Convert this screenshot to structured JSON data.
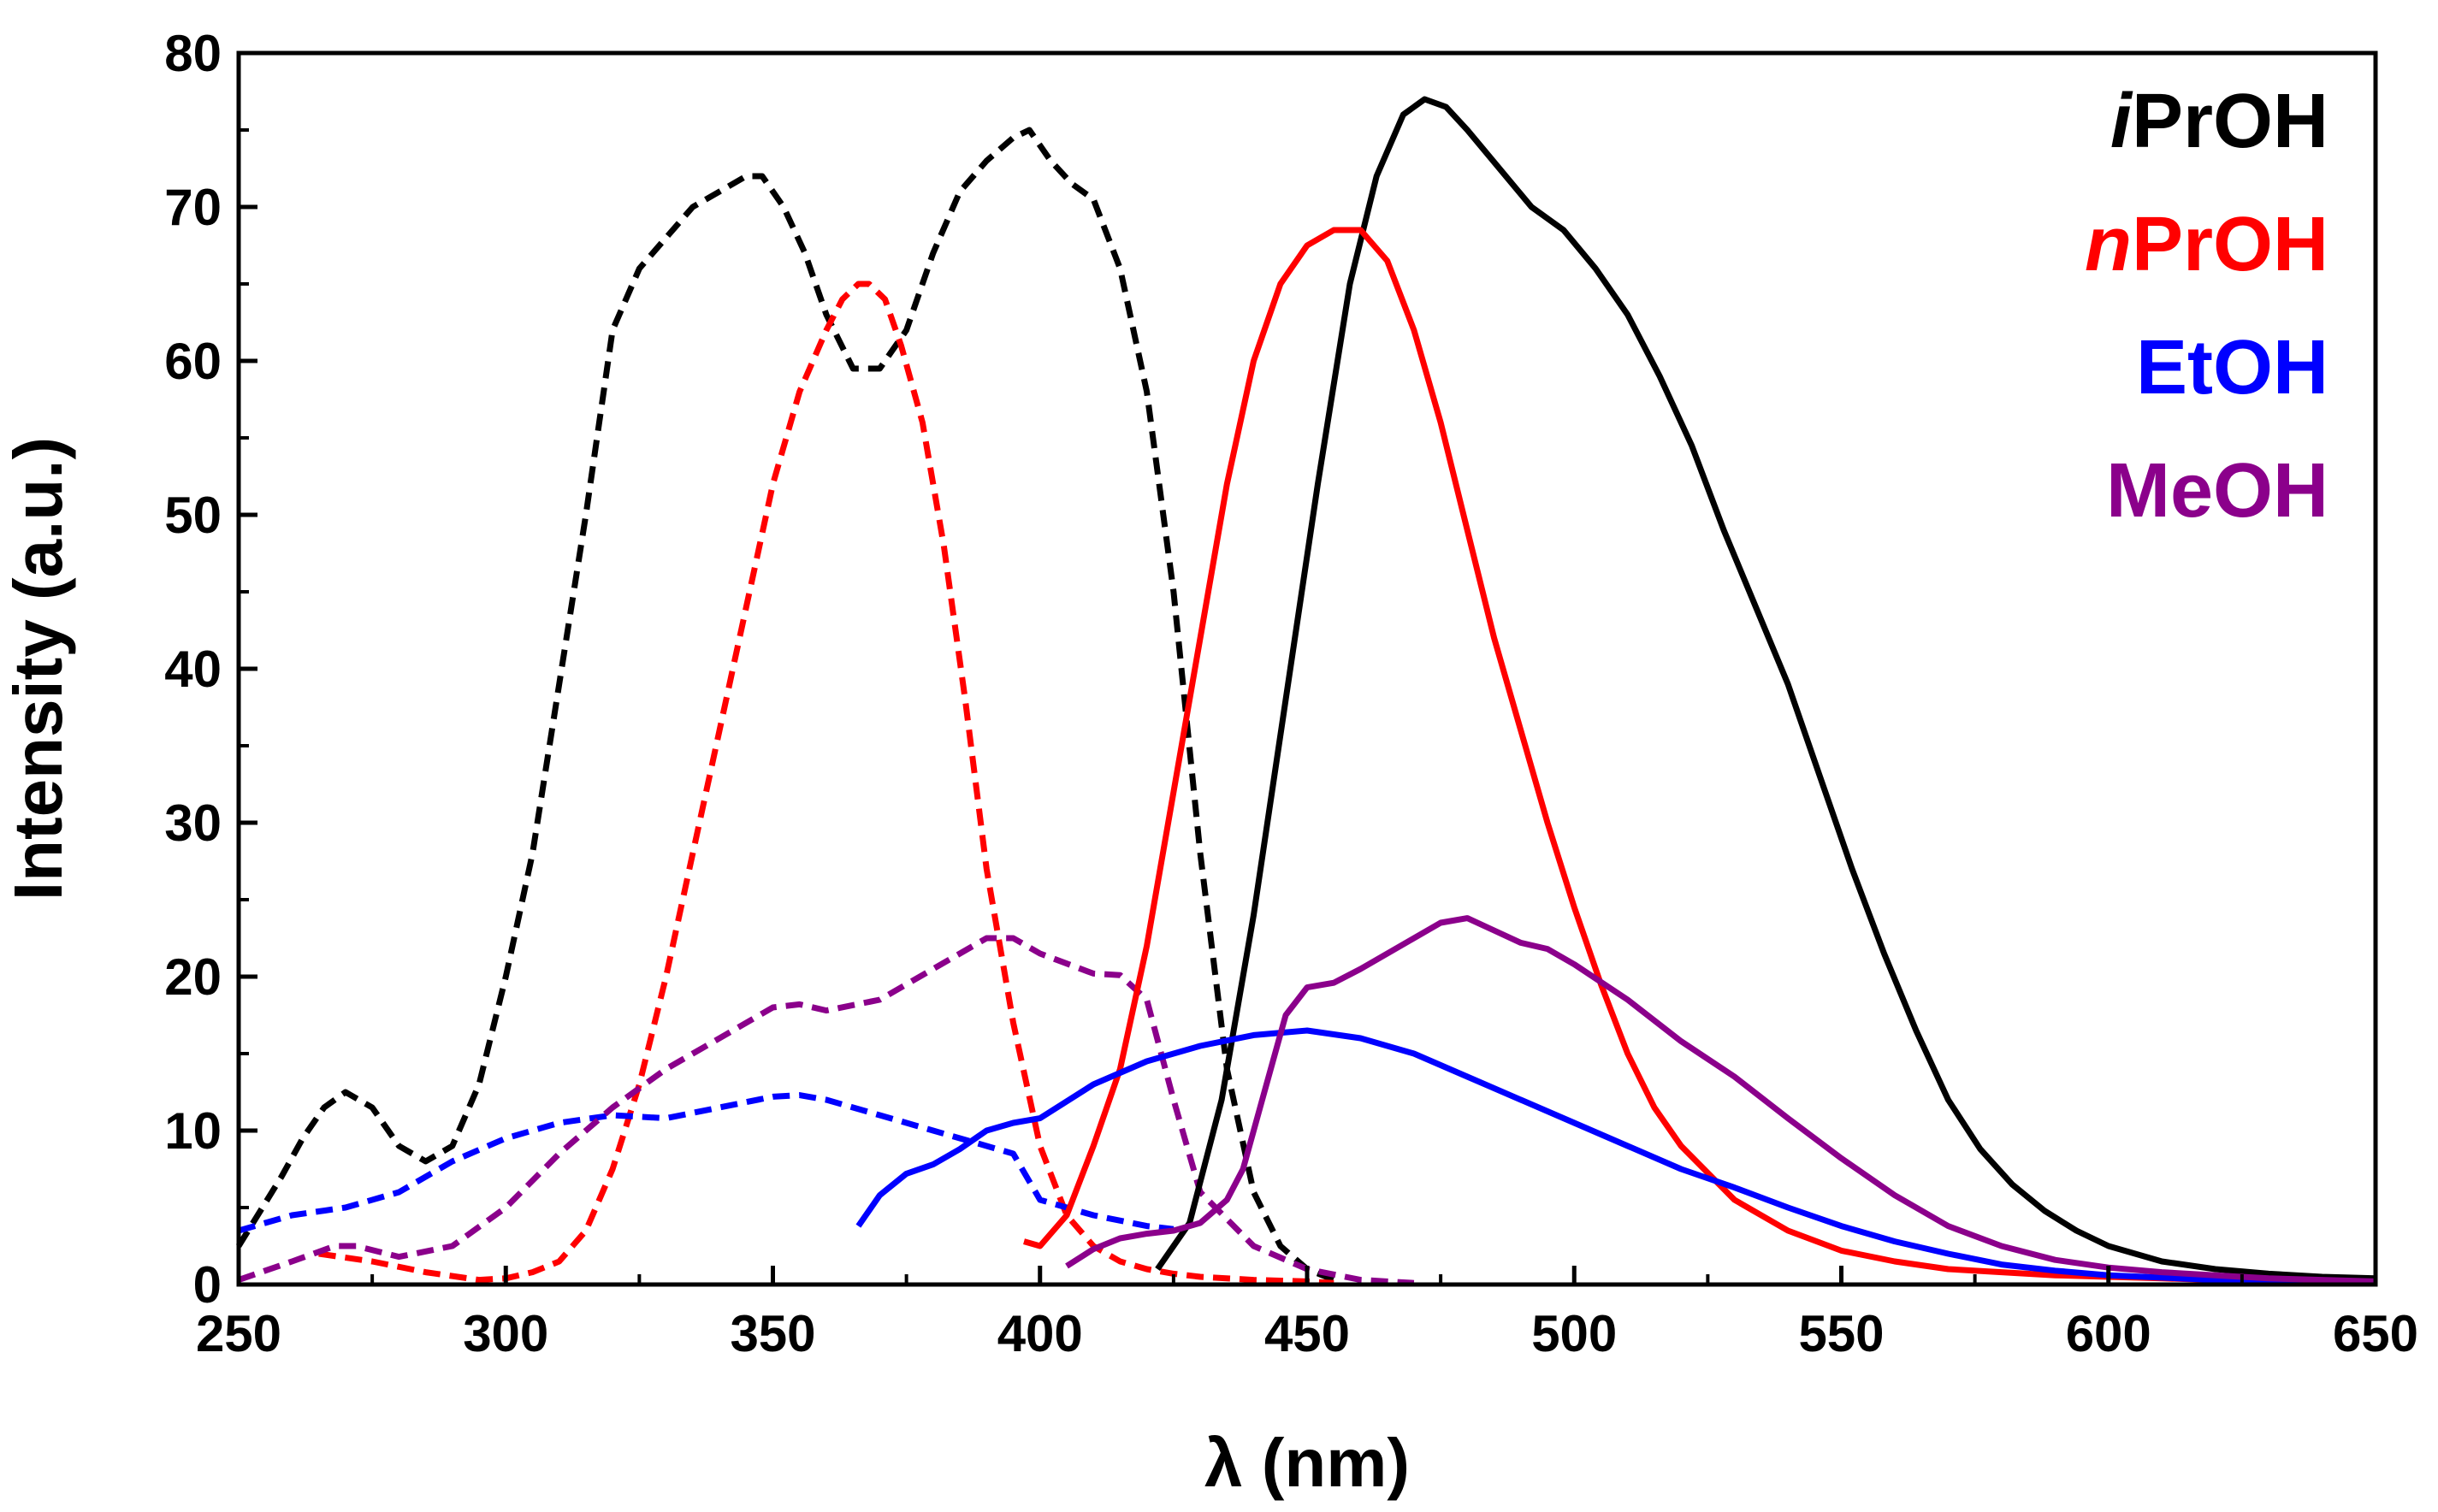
{
  "chart_data": {
    "type": "line",
    "title": "",
    "xlabel": "λ (nm)",
    "ylabel": "Intensity (a.u.)",
    "xlim": [
      250,
      650
    ],
    "ylim": [
      0,
      80
    ],
    "xticks": [
      250,
      300,
      350,
      400,
      450,
      500,
      550,
      600,
      650
    ],
    "yticks": [
      0,
      10,
      20,
      30,
      40,
      50,
      60,
      70,
      80
    ],
    "legend": [
      {
        "prefix": "i",
        "label": "PrOH",
        "color": "#000000"
      },
      {
        "prefix": "n",
        "label": "PrOH",
        "color": "#ff0000"
      },
      {
        "prefix": "",
        "label": "EtOH",
        "color": "#0000ff"
      },
      {
        "prefix": "",
        "label": "MeOH",
        "color": "#8b008b"
      }
    ],
    "series": [
      {
        "name": "iPrOH excitation",
        "color": "#000000",
        "style": "dashed",
        "x": [
          250,
          258,
          262,
          266,
          270,
          275,
          280,
          285,
          290,
          295,
          300,
          305,
          310,
          315,
          320,
          325,
          330,
          335,
          340,
          345,
          348,
          352,
          356,
          360,
          365,
          370,
          375,
          380,
          385,
          390,
          395,
          398,
          402,
          406,
          410,
          415,
          420,
          425,
          430,
          435,
          440,
          445,
          450,
          455
        ],
        "y": [
          2.5,
          7,
          9.5,
          11.5,
          12.5,
          11.5,
          9,
          8,
          9,
          13,
          20,
          28,
          39,
          50,
          62,
          66,
          68,
          70,
          71,
          72,
          72,
          70,
          67,
          63,
          59.5,
          59.5,
          62,
          67,
          71,
          73,
          74.5,
          75,
          73,
          71.5,
          70.5,
          66,
          58,
          45,
          28,
          14,
          6,
          2.5,
          1,
          0.3
        ]
      },
      {
        "name": "nPrOH excitation",
        "color": "#ff0000",
        "style": "dashed",
        "x": [
          265,
          275,
          285,
          295,
          300,
          305,
          310,
          315,
          320,
          325,
          330,
          335,
          340,
          345,
          350,
          355,
          360,
          363,
          366,
          368,
          371,
          374,
          378,
          382,
          386,
          390,
          395,
          400,
          405,
          410,
          415,
          420,
          425,
          430,
          440,
          450,
          455
        ],
        "y": [
          2,
          1.5,
          0.8,
          0.3,
          0.4,
          0.8,
          1.5,
          3.5,
          7.5,
          13,
          20,
          28,
          36,
          44,
          52,
          58,
          62,
          64,
          65,
          65,
          64,
          61,
          56,
          48,
          38,
          27,
          17,
          9,
          4.5,
          2.5,
          1.5,
          1,
          0.7,
          0.5,
          0.3,
          0.2,
          0.1
        ]
      },
      {
        "name": "EtOH excitation",
        "color": "#0000ff",
        "style": "dashed",
        "x": [
          250,
          260,
          270,
          280,
          290,
          300,
          310,
          320,
          330,
          340,
          350,
          355,
          360,
          370,
          380,
          390,
          395,
          400,
          410,
          420,
          425
        ],
        "y": [
          3.5,
          4.5,
          5,
          6,
          8,
          9.5,
          10.5,
          11,
          10.8,
          11.5,
          12.2,
          12.3,
          12,
          11,
          10,
          9,
          8.5,
          5.5,
          4.5,
          3.8,
          3.6
        ]
      },
      {
        "name": "MeOH excitation",
        "color": "#8b008b",
        "style": "dashed",
        "x": [
          250,
          260,
          268,
          272,
          280,
          290,
          300,
          310,
          320,
          330,
          340,
          350,
          355,
          360,
          370,
          380,
          390,
          395,
          400,
          410,
          415,
          420,
          425,
          430,
          440,
          450,
          460,
          470
        ],
        "y": [
          0.3,
          1.5,
          2.5,
          2.5,
          1.8,
          2.5,
          5,
          8.5,
          11.5,
          14,
          16,
          18,
          18.2,
          17.8,
          18.5,
          20.5,
          22.5,
          22.5,
          21.5,
          20.2,
          20.1,
          18.5,
          12,
          6,
          2.5,
          1,
          0.3,
          0.1
        ]
      },
      {
        "name": "iPrOH emission",
        "color": "#000000",
        "style": "solid",
        "x": [
          422,
          428,
          434,
          440,
          446,
          452,
          458,
          463,
          468,
          472,
          476,
          480,
          486,
          492,
          498,
          504,
          510,
          516,
          522,
          528,
          534,
          540,
          546,
          552,
          558,
          564,
          570,
          576,
          582,
          588,
          594,
          600,
          610,
          620,
          630,
          640,
          650
        ],
        "y": [
          1,
          4,
          12,
          24,
          38,
          52,
          65,
          72,
          76,
          77,
          76.5,
          75,
          72.5,
          70,
          68.5,
          66,
          63,
          59,
          54.5,
          49,
          44,
          39,
          33,
          27,
          21.5,
          16.5,
          12,
          8.8,
          6.5,
          4.8,
          3.5,
          2.5,
          1.5,
          1,
          0.7,
          0.5,
          0.4
        ]
      },
      {
        "name": "nPrOH emission",
        "color": "#ff0000",
        "style": "solid",
        "x": [
          397,
          400,
          405,
          410,
          415,
          420,
          425,
          430,
          435,
          440,
          445,
          450,
          455,
          460,
          465,
          470,
          475,
          480,
          485,
          490,
          495,
          500,
          505,
          510,
          515,
          520,
          530,
          540,
          550,
          560,
          570,
          580,
          590,
          600,
          610,
          620,
          630,
          640,
          650
        ],
        "y": [
          2.8,
          2.5,
          4.5,
          9,
          14,
          22,
          32,
          42,
          52,
          60,
          65,
          67.5,
          68.5,
          68.5,
          66.5,
          62,
          56,
          49,
          42,
          36,
          30,
          24.5,
          19.5,
          15,
          11.5,
          9,
          5.5,
          3.5,
          2.2,
          1.5,
          1,
          0.8,
          0.6,
          0.5,
          0.4,
          0.3,
          0.2,
          0.2,
          0.1
        ]
      },
      {
        "name": "EtOH emission",
        "color": "#0000ff",
        "style": "solid",
        "x": [
          366,
          370,
          375,
          380,
          385,
          390,
          395,
          400,
          410,
          420,
          430,
          440,
          450,
          460,
          470,
          480,
          490,
          500,
          510,
          520,
          530,
          540,
          550,
          560,
          570,
          580,
          590,
          600,
          620,
          640,
          650
        ],
        "y": [
          3.8,
          5.8,
          7.2,
          7.8,
          8.8,
          10,
          10.5,
          10.8,
          13,
          14.5,
          15.5,
          16.2,
          16.5,
          16,
          15,
          13.5,
          12,
          10.5,
          9,
          7.5,
          6.3,
          5,
          3.8,
          2.8,
          2,
          1.3,
          0.9,
          0.6,
          0.3,
          0.2,
          0.1
        ]
      },
      {
        "name": "MeOH emission",
        "color": "#8b008b",
        "style": "solid",
        "x": [
          405,
          410,
          415,
          420,
          425,
          430,
          435,
          438,
          442,
          446,
          450,
          455,
          460,
          465,
          470,
          475,
          480,
          485,
          490,
          495,
          500,
          510,
          520,
          530,
          540,
          550,
          560,
          570,
          580,
          590,
          600,
          610,
          620,
          630,
          640,
          650
        ],
        "y": [
          1.2,
          2.3,
          3,
          3.3,
          3.5,
          4,
          5.5,
          7.5,
          12.5,
          17.5,
          19.3,
          19.6,
          20.5,
          21.5,
          22.5,
          23.5,
          23.8,
          23,
          22.2,
          21.8,
          20.8,
          18.5,
          15.8,
          13.5,
          10.8,
          8.2,
          5.8,
          3.8,
          2.5,
          1.6,
          1.1,
          0.8,
          0.6,
          0.4,
          0.3,
          0.2
        ]
      }
    ]
  }
}
